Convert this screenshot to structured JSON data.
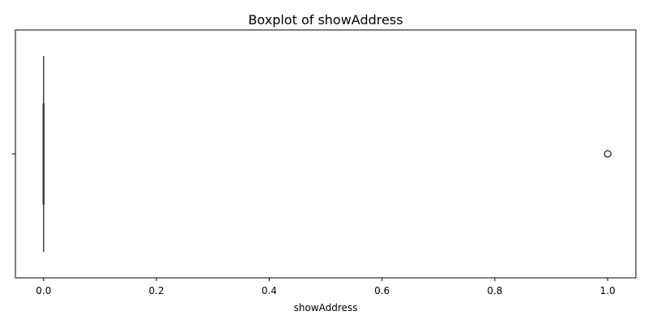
{
  "chart_data": {
    "type": "boxplot",
    "title": "Boxplot of showAddress",
    "xlabel": "showAddress",
    "ylabel": "",
    "xlim": [
      -0.05,
      1.05
    ],
    "xticks": [
      0.0,
      0.2,
      0.4,
      0.6,
      0.8,
      1.0
    ],
    "xtick_labels": [
      "0.0",
      "0.2",
      "0.4",
      "0.6",
      "0.8",
      "1.0"
    ],
    "grid": false,
    "box": {
      "min": 0,
      "q1": 0,
      "median": 0,
      "q3": 0,
      "max": 0
    },
    "outliers": [
      1.0
    ],
    "colors": {
      "axes": "#000000",
      "box": "#4c72b0",
      "whisker": "#3f3f3f",
      "outlier": "#3f3f3f"
    }
  }
}
